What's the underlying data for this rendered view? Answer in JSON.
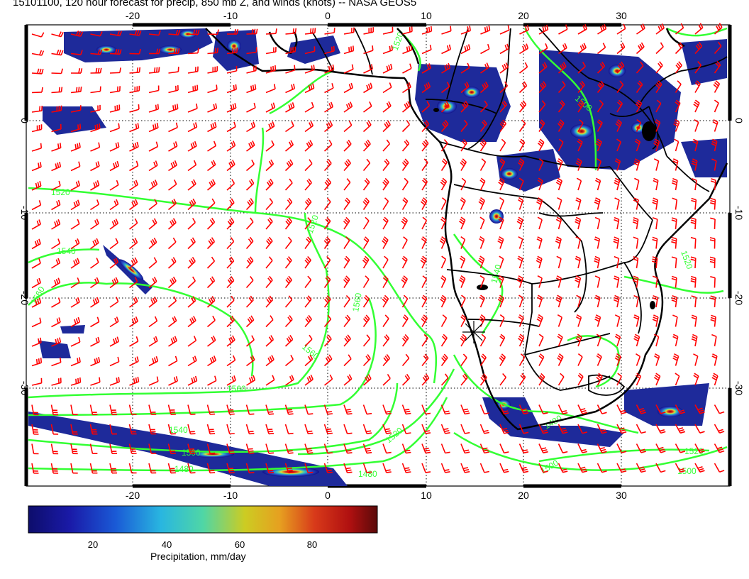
{
  "title": "15101100, 120 hour forecast for precip, 850 mb Z, and winds (knots) -- NASA GEOS5",
  "map": {
    "lon_ticks_top": [
      "-20",
      "-10",
      "0",
      "10",
      "20",
      "30"
    ],
    "lon_ticks_bottom": [
      "-20",
      "-10",
      "0",
      "10",
      "20",
      "30"
    ],
    "lat_ticks_left": [
      "0",
      "-10",
      "-20",
      "-30"
    ],
    "lat_ticks_right": [
      "0",
      "-10",
      "-20",
      "-30"
    ],
    "lon_values": [
      -20,
      -10,
      0,
      10,
      20,
      30
    ],
    "lat_values": [
      0,
      -10,
      -20,
      -30
    ],
    "lon_range": [
      -30.5,
      40.5
    ],
    "lat_range": [
      -40,
      11
    ],
    "contour_labels": [
      "1520",
      "1520",
      "1540",
      "1560",
      "1560",
      "1560",
      "1560",
      "1540",
      "1500",
      "1480",
      "1480",
      "1520",
      "1500",
      "1480",
      "1520",
      "1500",
      "1520",
      "1520",
      "1500",
      "1540"
    ],
    "colors": {
      "barb": "#ff0000",
      "contour": "#33ff33",
      "coast": "#000000",
      "precip_low": "#1a1a8c",
      "precip_high": "#8b0000"
    }
  },
  "colorbar": {
    "ticks": [
      "20",
      "40",
      "60",
      "80"
    ],
    "tick_values": [
      20,
      40,
      60,
      80
    ],
    "range": [
      0,
      100
    ],
    "label": "Precipitation, mm/day"
  }
}
